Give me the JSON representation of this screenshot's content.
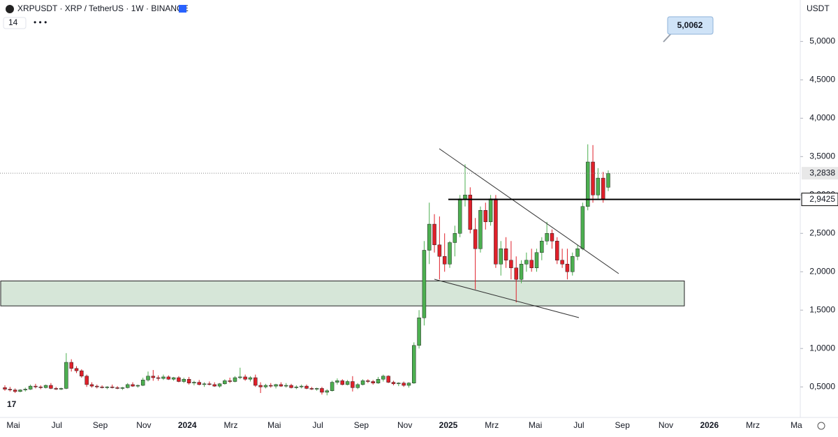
{
  "chart_data": {
    "type": "candlestick",
    "title": "XRPUSDT · XRP / TetherUS · 1W · BINANCE",
    "indicator_label": "14",
    "currency_label": "USDT",
    "annotation": "5,0062",
    "up_color": "#4caf50",
    "down_color": "#e0202a",
    "open": [
      0.49,
      0.47,
      0.46,
      0.44,
      0.46,
      0.47,
      0.51,
      0.5,
      0.49,
      0.52,
      0.48,
      0.47,
      0.48,
      0.82,
      0.74,
      0.71,
      0.64,
      0.53,
      0.51,
      0.5,
      0.49,
      0.5,
      0.49,
      0.48,
      0.49,
      0.53,
      0.51,
      0.52,
      0.59,
      0.64,
      0.62,
      0.61,
      0.63,
      0.6,
      0.62,
      0.57,
      0.6,
      0.55,
      0.56,
      0.53,
      0.54,
      0.53,
      0.51,
      0.54,
      0.58,
      0.57,
      0.62,
      0.63,
      0.6,
      0.62,
      0.52,
      0.5,
      0.52,
      0.51,
      0.53,
      0.51,
      0.52,
      0.49,
      0.5,
      0.51,
      0.48,
      0.47,
      0.48,
      0.43,
      0.45,
      0.56,
      0.58,
      0.53,
      0.57,
      0.49,
      0.53,
      0.58,
      0.57,
      0.55,
      0.6,
      0.64,
      0.56,
      0.54,
      0.55,
      0.52,
      0.55,
      1.04,
      1.4,
      2.28,
      2.62,
      2.35,
      2.2,
      2.1,
      2.38,
      2.5,
      2.95,
      3.0,
      2.55,
      2.3,
      2.8,
      2.65,
      2.95,
      2.1,
      2.3,
      2.15,
      2.05,
      1.9,
      2.1,
      2.15,
      2.05,
      2.25,
      2.4,
      2.5,
      2.4,
      2.15,
      2.1,
      2.0,
      2.2,
      2.3,
      2.85,
      3.43,
      3.0,
      3.22,
      3.1
    ],
    "high": [
      0.52,
      0.5,
      0.48,
      0.47,
      0.49,
      0.53,
      0.54,
      0.52,
      0.53,
      0.55,
      0.5,
      0.49,
      0.94,
      0.86,
      0.77,
      0.73,
      0.66,
      0.56,
      0.53,
      0.52,
      0.51,
      0.53,
      0.51,
      0.5,
      0.55,
      0.56,
      0.53,
      0.62,
      0.7,
      0.72,
      0.65,
      0.66,
      0.65,
      0.63,
      0.64,
      0.62,
      0.63,
      0.58,
      0.59,
      0.56,
      0.57,
      0.56,
      0.55,
      0.6,
      0.62,
      0.64,
      0.75,
      0.66,
      0.64,
      0.66,
      0.56,
      0.54,
      0.55,
      0.54,
      0.56,
      0.55,
      0.54,
      0.52,
      0.53,
      0.53,
      0.5,
      0.49,
      0.5,
      0.47,
      0.58,
      0.61,
      0.6,
      0.59,
      0.64,
      0.55,
      0.6,
      0.6,
      0.59,
      0.63,
      0.66,
      0.65,
      0.58,
      0.56,
      0.57,
      0.56,
      1.08,
      1.5,
      2.4,
      2.9,
      2.75,
      2.72,
      2.5,
      2.4,
      2.6,
      3.0,
      3.4,
      3.1,
      2.7,
      2.85,
      2.9,
      3.0,
      3.0,
      2.4,
      2.45,
      2.4,
      2.2,
      2.15,
      2.25,
      2.3,
      2.3,
      2.45,
      2.65,
      2.55,
      2.45,
      2.3,
      2.3,
      2.25,
      2.35,
      2.9,
      3.66,
      3.65,
      3.35,
      3.3,
      3.32
    ],
    "low": [
      0.45,
      0.44,
      0.42,
      0.43,
      0.44,
      0.46,
      0.48,
      0.47,
      0.48,
      0.47,
      0.46,
      0.46,
      0.47,
      0.7,
      0.68,
      0.62,
      0.5,
      0.49,
      0.48,
      0.48,
      0.47,
      0.48,
      0.47,
      0.46,
      0.48,
      0.5,
      0.49,
      0.51,
      0.57,
      0.58,
      0.58,
      0.59,
      0.59,
      0.58,
      0.56,
      0.55,
      0.53,
      0.52,
      0.52,
      0.5,
      0.52,
      0.5,
      0.49,
      0.53,
      0.55,
      0.56,
      0.6,
      0.58,
      0.57,
      0.5,
      0.42,
      0.48,
      0.49,
      0.48,
      0.5,
      0.49,
      0.48,
      0.47,
      0.48,
      0.47,
      0.46,
      0.45,
      0.4,
      0.39,
      0.44,
      0.53,
      0.52,
      0.52,
      0.44,
      0.47,
      0.52,
      0.55,
      0.53,
      0.54,
      0.57,
      0.55,
      0.52,
      0.51,
      0.5,
      0.49,
      0.54,
      1.0,
      1.3,
      2.1,
      2.25,
      1.9,
      2.0,
      2.05,
      2.2,
      2.45,
      2.85,
      2.5,
      1.77,
      2.25,
      2.55,
      2.6,
      2.05,
      1.95,
      2.05,
      1.9,
      1.6,
      1.85,
      2.0,
      2.0,
      2.0,
      2.15,
      2.35,
      2.3,
      2.1,
      2.05,
      1.9,
      1.95,
      2.15,
      2.28,
      2.8,
      2.9,
      2.95,
      2.9,
      3.05
    ],
    "close": [
      0.47,
      0.46,
      0.44,
      0.46,
      0.47,
      0.51,
      0.5,
      0.49,
      0.52,
      0.48,
      0.47,
      0.48,
      0.82,
      0.74,
      0.71,
      0.64,
      0.53,
      0.51,
      0.5,
      0.49,
      0.5,
      0.49,
      0.48,
      0.49,
      0.53,
      0.51,
      0.52,
      0.59,
      0.64,
      0.62,
      0.61,
      0.63,
      0.6,
      0.62,
      0.57,
      0.6,
      0.55,
      0.56,
      0.53,
      0.54,
      0.53,
      0.51,
      0.54,
      0.58,
      0.57,
      0.62,
      0.63,
      0.6,
      0.62,
      0.52,
      0.5,
      0.52,
      0.51,
      0.53,
      0.51,
      0.52,
      0.49,
      0.5,
      0.51,
      0.48,
      0.47,
      0.48,
      0.43,
      0.45,
      0.56,
      0.58,
      0.53,
      0.57,
      0.49,
      0.53,
      0.58,
      0.57,
      0.55,
      0.6,
      0.64,
      0.56,
      0.54,
      0.55,
      0.52,
      0.55,
      1.04,
      1.4,
      2.28,
      2.62,
      2.35,
      2.2,
      2.1,
      2.38,
      2.5,
      2.95,
      3.0,
      2.55,
      2.3,
      2.8,
      2.65,
      2.95,
      2.1,
      2.3,
      2.15,
      2.05,
      1.9,
      2.1,
      2.15,
      2.05,
      2.25,
      2.4,
      2.5,
      2.4,
      2.15,
      2.1,
      2.0,
      2.2,
      2.3,
      2.85,
      3.43,
      3.0,
      3.22,
      2.95,
      3.28
    ],
    "ylim": [
      0.12,
      5.54
    ],
    "yticks": [
      {
        "value": 0.5,
        "label": "0,5000"
      },
      {
        "value": 1.0,
        "label": "1,0000"
      },
      {
        "value": 1.5,
        "label": "1,5000"
      },
      {
        "value": 2.0,
        "label": "2,0000"
      },
      {
        "value": 2.5,
        "label": "2,5000"
      },
      {
        "value": 3.0,
        "label": "3,0000"
      },
      {
        "value": 3.5,
        "label": "3,5000"
      },
      {
        "value": 4.0,
        "label": "4,0000"
      },
      {
        "value": 4.5,
        "label": "4,5000"
      },
      {
        "value": 5.0,
        "label": "5,0000"
      }
    ],
    "x_labels": [
      "Mai",
      "Jul",
      "Sep",
      "Nov",
      "2024",
      "Mrz",
      "Mai",
      "Jul",
      "Sep",
      "Nov",
      "2025",
      "Mrz",
      "Mai",
      "Jul",
      "Sep",
      "Nov",
      "2026",
      "Mrz",
      "Ma"
    ],
    "last_price": {
      "value": 3.2838,
      "label": "3,2838"
    },
    "level": {
      "value": 2.9425,
      "label": "2,9425"
    },
    "zone": [
      1.555,
      1.88
    ]
  }
}
